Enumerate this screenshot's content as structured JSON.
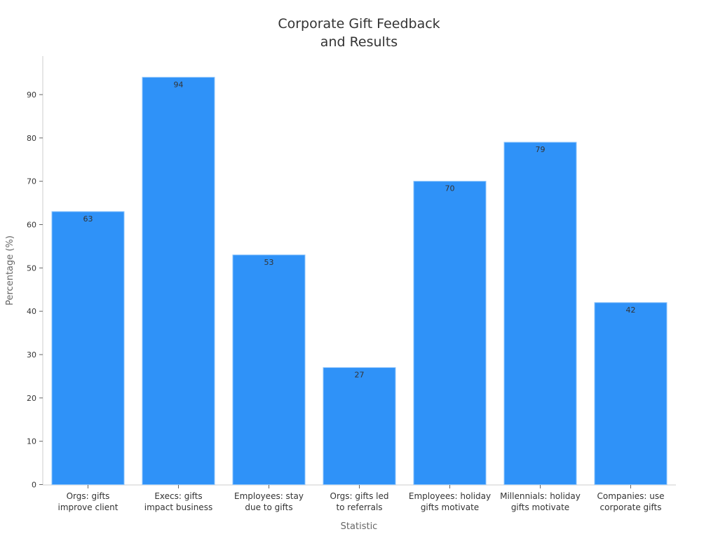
{
  "chart_data": {
    "type": "bar",
    "title": [
      "Corporate Gift Feedback",
      "and Results"
    ],
    "xlabel": "Statistic",
    "ylabel": "Percentage (%)",
    "categories": [
      [
        "Orgs: gifts",
        "improve client"
      ],
      [
        "Execs: gifts",
        "impact business"
      ],
      [
        "Employees: stay",
        "due to gifts"
      ],
      [
        "Orgs: gifts led",
        "to referrals"
      ],
      [
        "Employees: holiday",
        "gifts motivate"
      ],
      [
        "Millennials: holiday",
        "gifts motivate"
      ],
      [
        "Companies: use",
        "corporate gifts"
      ]
    ],
    "values": [
      63,
      94,
      53,
      27,
      70,
      79,
      42
    ],
    "yticks": [
      0,
      10,
      20,
      30,
      40,
      50,
      60,
      70,
      80,
      90
    ],
    "ylim": [
      0,
      99
    ],
    "grid": false,
    "bar_color": "#2f92f8",
    "bar_edge_color": "#8cc4fb"
  }
}
